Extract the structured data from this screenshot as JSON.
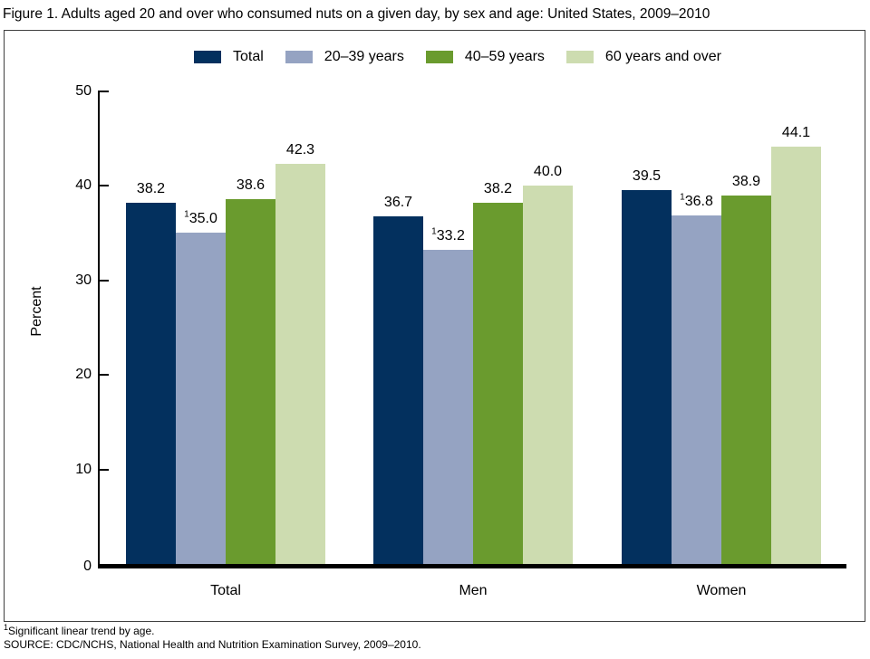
{
  "title": "Figure 1. Adults aged 20 and over who consumed nuts on a given day, by sex and age: United States, 2009–2010",
  "chart_data": {
    "type": "bar",
    "categories": [
      "Total",
      "Men",
      "Women"
    ],
    "series": [
      {
        "name": "Total",
        "color": "#03305e",
        "values": [
          38.2,
          36.7,
          39.5
        ],
        "superscripts": [
          "",
          "",
          ""
        ]
      },
      {
        "name": "20–39 years",
        "color": "#95a3c2",
        "values": [
          35.0,
          33.2,
          36.8
        ],
        "superscripts": [
          "1",
          "1",
          "1"
        ]
      },
      {
        "name": "40–59 years",
        "color": "#6a9b2e",
        "values": [
          38.6,
          38.2,
          38.9
        ],
        "superscripts": [
          "",
          "",
          ""
        ]
      },
      {
        "name": "60 years and over",
        "color": "#cddcb0",
        "values": [
          42.3,
          40.0,
          44.1
        ],
        "superscripts": [
          "",
          "",
          ""
        ]
      }
    ],
    "title": "Figure 1. Adults aged 20 and over who consumed nuts on a given day, by sex and age: United States, 2009–2010",
    "xlabel": "",
    "ylabel": "Percent",
    "ylim": [
      0,
      50
    ],
    "yticks": [
      0,
      10,
      20,
      30,
      40,
      50
    ],
    "legend_position": "top",
    "grid": false
  },
  "footnotes": [
    {
      "sup": "1",
      "text": "Significant linear trend by age."
    },
    {
      "sup": "",
      "text": "SOURCE: CDC/NCHS, National Health and Nutrition Examination Survey, 2009–2010."
    }
  ]
}
